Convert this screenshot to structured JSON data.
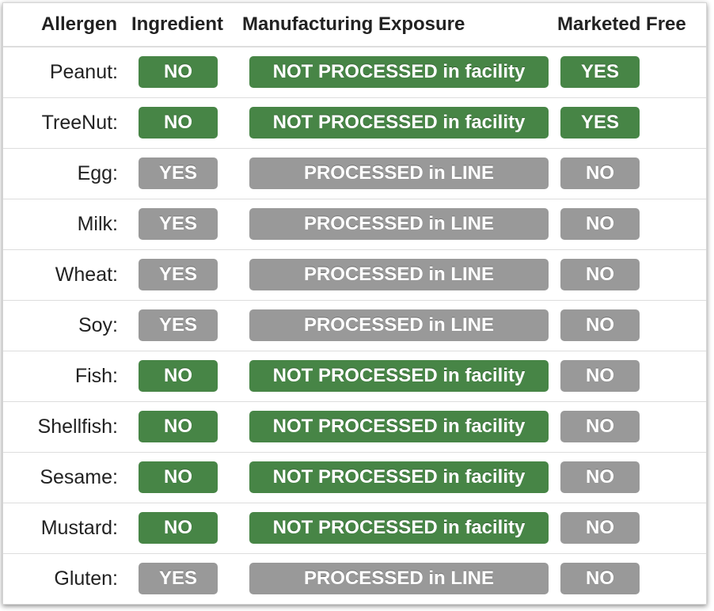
{
  "columns": {
    "allergen": "Allergen",
    "ingredient": "Ingredient",
    "exposure": "Manufacturing Exposure",
    "free": "Marketed Free"
  },
  "colors": {
    "positive": "#478546",
    "negative": "#999999"
  },
  "rows": [
    {
      "allergen": "Peanut:",
      "ingredient": "NO",
      "exposure": "NOT PROCESSED in facility",
      "free": "YES"
    },
    {
      "allergen": "TreeNut:",
      "ingredient": "NO",
      "exposure": "NOT PROCESSED in facility",
      "free": "YES"
    },
    {
      "allergen": "Egg:",
      "ingredient": "YES",
      "exposure": "PROCESSED in LINE",
      "free": "NO"
    },
    {
      "allergen": "Milk:",
      "ingredient": "YES",
      "exposure": "PROCESSED in LINE",
      "free": "NO"
    },
    {
      "allergen": "Wheat:",
      "ingredient": "YES",
      "exposure": "PROCESSED in LINE",
      "free": "NO"
    },
    {
      "allergen": "Soy:",
      "ingredient": "YES",
      "exposure": "PROCESSED in LINE",
      "free": "NO"
    },
    {
      "allergen": "Fish:",
      "ingredient": "NO",
      "exposure": "NOT PROCESSED in facility",
      "free": "NO"
    },
    {
      "allergen": "Shellfish:",
      "ingredient": "NO",
      "exposure": "NOT PROCESSED in facility",
      "free": "NO"
    },
    {
      "allergen": "Sesame:",
      "ingredient": "NO",
      "exposure": "NOT PROCESSED in facility",
      "free": "NO"
    },
    {
      "allergen": "Mustard:",
      "ingredient": "NO",
      "exposure": "NOT PROCESSED in facility",
      "free": "NO"
    },
    {
      "allergen": "Gluten:",
      "ingredient": "YES",
      "exposure": "PROCESSED in LINE",
      "free": "NO"
    }
  ]
}
